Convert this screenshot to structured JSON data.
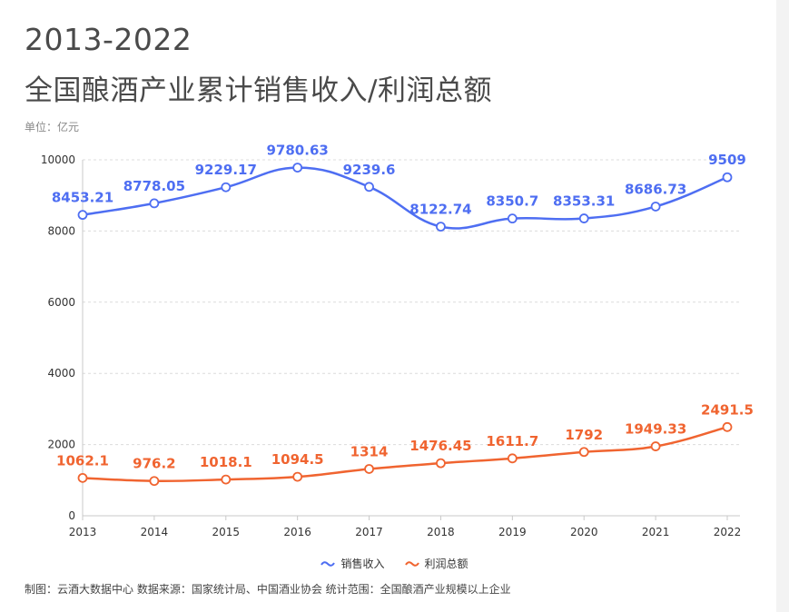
{
  "title_line1": "2013-2022",
  "title_line2": "全国酿酒产业累计销售收入/利润总额",
  "unit_label": "单位：亿元",
  "footer": "制图：云酒大数据中心    数据来源：国家统计局、中国酒业协会    统计范围：全国酿酒产业规模以上企业",
  "colors": {
    "sales": "#4e6ef2",
    "profit": "#f06430",
    "axis": "#c8c8c8",
    "grid": "#dcdcdc"
  },
  "chart_data": {
    "type": "line",
    "title": "全国酿酒产业累计销售收入/利润总额",
    "xlabel": "",
    "ylabel": "亿元",
    "ylim": [
      0,
      10000
    ],
    "yticks": [
      0,
      2000,
      4000,
      6000,
      8000,
      10000
    ],
    "grid": true,
    "legend_position": "bottom-center",
    "categories": [
      "2013",
      "2014",
      "2015",
      "2016",
      "2017",
      "2018",
      "2019",
      "2020",
      "2021",
      "2022"
    ],
    "series": [
      {
        "name": "销售收入",
        "values": [
          8453.21,
          8778.05,
          9229.17,
          9780.63,
          9239.6,
          8122.74,
          8350.7,
          8353.31,
          8686.73,
          9509
        ],
        "labels": [
          "8453.21",
          "8778.05",
          "9229.17",
          "9780.63",
          "9239.6",
          "8122.74",
          "8350.7",
          "8353.31",
          "8686.73",
          "9509"
        ]
      },
      {
        "name": "利润总额",
        "values": [
          1062.1,
          976.2,
          1018.1,
          1094.5,
          1314,
          1476.45,
          1611.7,
          1792,
          1949.33,
          2491.5
        ],
        "labels": [
          "1062.1",
          "976.2",
          "1018.1",
          "1094.5",
          "1314",
          "1476.45",
          "1611.7",
          "1792",
          "1949.33",
          "2491.5"
        ]
      }
    ]
  }
}
